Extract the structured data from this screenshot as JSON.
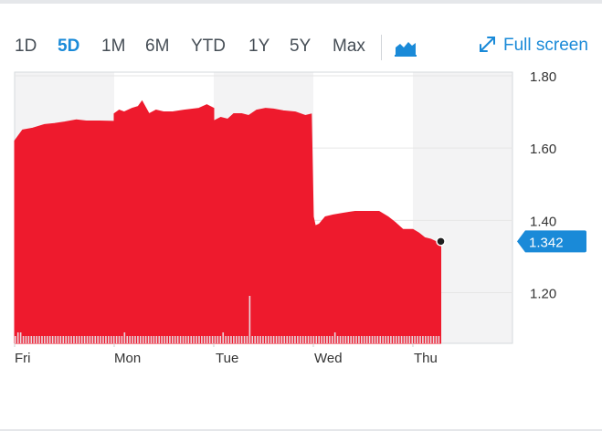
{
  "toolbar": {
    "ranges": [
      "1D",
      "5D",
      "1M",
      "6M",
      "YTD",
      "1Y",
      "5Y",
      "Max"
    ],
    "active_range": "5D",
    "chart_type_icon": "area-chart-icon",
    "fullscreen_label": "Full screen",
    "fullscreen_icon": "expand-icon"
  },
  "colors": {
    "area": "#ee1a2d",
    "volume": "#e8d6dd",
    "accent": "#1a8ad8",
    "band": "#f3f3f4",
    "grid": "#e6e6e6"
  },
  "chart_data": {
    "type": "area",
    "x_tick_labels": [
      "Fri",
      "Mon",
      "Tue",
      "Wed",
      "Thu"
    ],
    "y_tick_labels": [
      "1.80",
      "1.60",
      "1.40",
      "1.20"
    ],
    "ylim": [
      1.06,
      1.81
    ],
    "grid": true,
    "last_value_label": "1.342",
    "series": [
      {
        "x": [
          0,
          0.08,
          0.18,
          0.3,
          0.4,
          0.5,
          0.62,
          0.72,
          0.85,
          1.0,
          1.0,
          1.05,
          1.1,
          1.18,
          1.24,
          1.28,
          1.35,
          1.42,
          1.5,
          1.58,
          1.7,
          1.85,
          1.93,
          2.0,
          2.0,
          2.07,
          2.14,
          2.2,
          2.28,
          2.35,
          2.43,
          2.52,
          2.6,
          2.7,
          2.82,
          2.92,
          2.98,
          3.0,
          3.02,
          3.06,
          3.12,
          3.2,
          3.3,
          3.42,
          3.55,
          3.66,
          3.75,
          3.82,
          3.9,
          4.0,
          4.06,
          4.12,
          4.18,
          4.24,
          4.28
        ],
        "y": [
          1.62,
          1.65,
          1.655,
          1.665,
          1.668,
          1.672,
          1.678,
          1.675,
          1.675,
          1.674,
          1.695,
          1.705,
          1.7,
          1.71,
          1.715,
          1.73,
          1.695,
          1.705,
          1.7,
          1.7,
          1.705,
          1.71,
          1.72,
          1.71,
          1.675,
          1.685,
          1.68,
          1.695,
          1.695,
          1.69,
          1.705,
          1.71,
          1.708,
          1.703,
          1.7,
          1.69,
          1.694,
          1.41,
          1.385,
          1.39,
          1.41,
          1.415,
          1.42,
          1.425,
          1.425,
          1.425,
          1.41,
          1.395,
          1.375,
          1.375,
          1.365,
          1.352,
          1.348,
          1.34,
          1.342
        ]
      }
    ],
    "volume": [
      1,
      2,
      2,
      1,
      1,
      1,
      1,
      1,
      1,
      1,
      1,
      1,
      1,
      1,
      1,
      1,
      1,
      1,
      1,
      1,
      1,
      1,
      1,
      1,
      1,
      1,
      1,
      1,
      1,
      1,
      1,
      1,
      1,
      1,
      1,
      1,
      1,
      1,
      1,
      1,
      1,
      2,
      1,
      1,
      1,
      1,
      1,
      1,
      1,
      1,
      1,
      1,
      1,
      1,
      1,
      1,
      1,
      1,
      1,
      1,
      1,
      1,
      1,
      1,
      1,
      1,
      1,
      1,
      1,
      1,
      1,
      1,
      1,
      1,
      1,
      1,
      1,
      1,
      2,
      1,
      1,
      1,
      1,
      1,
      1,
      1,
      1,
      1,
      12,
      1,
      1,
      1,
      1,
      1,
      1,
      1,
      1,
      1,
      1,
      1,
      1,
      1,
      1,
      1,
      1,
      1,
      1,
      1,
      1,
      1,
      1,
      1,
      1,
      1,
      1,
      1,
      1,
      1,
      1,
      1,
      2,
      1,
      1,
      1,
      1,
      1,
      1,
      1,
      1,
      1,
      1,
      1,
      1,
      1,
      1,
      1,
      1,
      1,
      1,
      1,
      1,
      1,
      1,
      1,
      1,
      1,
      1,
      1,
      1,
      1,
      1,
      1,
      1,
      1,
      1,
      1,
      1,
      1,
      1,
      1
    ]
  }
}
